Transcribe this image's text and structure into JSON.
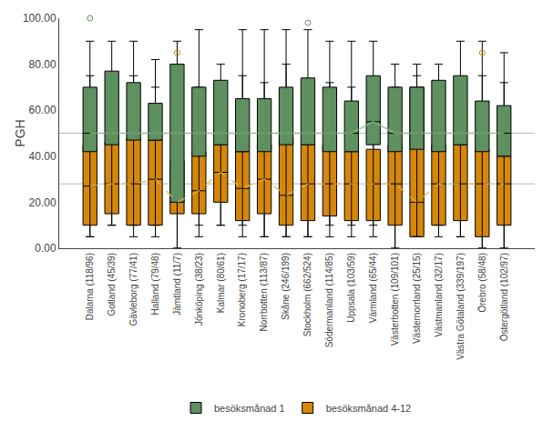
{
  "chart_data": {
    "type": "box",
    "ylabel": "PGH",
    "categories": [
      "Dalarna (118/96)",
      "Gotland (45/39)",
      "Gävleborg (77/41)",
      "Halland (79/48)",
      "Jämtland (11/7)",
      "Jönköping (38/23)",
      "Kalmar (80/61)",
      "Kronoberg (17/17)",
      "Norrbotten (113/87)",
      "Skåne (246/199)",
      "Stockholm (662/524)",
      "Södermanland (114/85)",
      "Uppsala (103/59)",
      "Värmland (65/44)",
      "Västerbotten (109/101)",
      "Västernorrland (25/15)",
      "Västmanland (32/17)",
      "Västra Götaland (339/197)",
      "Örebro (58/48)",
      "Östergötland (102/97)"
    ],
    "series": [
      {
        "type": "box",
        "name": "besöksmånad 1",
        "color": "#5f9060",
        "marker": "circle-open",
        "boxes": [
          {
            "whislo": 5,
            "q1": 42,
            "med": 50,
            "q3": 70,
            "whishi": 90,
            "fliers": [
              100
            ]
          },
          {
            "whislo": 10,
            "q1": 45,
            "med": 50,
            "q3": 77,
            "whishi": 90,
            "fliers": []
          },
          {
            "whislo": 10,
            "q1": 47,
            "med": 50,
            "q3": 72,
            "whishi": 90,
            "fliers": []
          },
          {
            "whislo": 10,
            "q1": 47,
            "med": 50,
            "q3": 63,
            "whishi": 82,
            "fliers": []
          },
          {
            "whislo": 0,
            "q1": 20,
            "med": 50,
            "q3": 80,
            "whishi": 90,
            "fliers": []
          },
          {
            "whislo": 10,
            "q1": 40,
            "med": 50,
            "q3": 70,
            "whishi": 95,
            "fliers": []
          },
          {
            "whislo": 10,
            "q1": 45,
            "med": 50,
            "q3": 73,
            "whishi": 80,
            "fliers": []
          },
          {
            "whislo": 10,
            "q1": 42,
            "med": 50,
            "q3": 65,
            "whishi": 95,
            "fliers": []
          },
          {
            "whislo": 5,
            "q1": 42,
            "med": 50,
            "q3": 65,
            "whishi": 95,
            "fliers": []
          },
          {
            "whislo": 5,
            "q1": 45,
            "med": 50,
            "q3": 70,
            "whishi": 95,
            "fliers": []
          },
          {
            "whislo": 5,
            "q1": 45,
            "med": 50,
            "q3": 74,
            "whishi": 95,
            "fliers": [
              98
            ]
          },
          {
            "whislo": 10,
            "q1": 42,
            "med": 50,
            "q3": 70,
            "whishi": 90,
            "fliers": []
          },
          {
            "whislo": 10,
            "q1": 42,
            "med": 50,
            "q3": 64,
            "whishi": 90,
            "fliers": []
          },
          {
            "whislo": 10,
            "q1": 45,
            "med": 55,
            "q3": 75,
            "whishi": 90,
            "fliers": []
          },
          {
            "whislo": 0,
            "q1": 42,
            "med": 50,
            "q3": 70,
            "whishi": 80,
            "fliers": []
          },
          {
            "whislo": 5,
            "q1": 43,
            "med": 50,
            "q3": 70,
            "whishi": 80,
            "fliers": []
          },
          {
            "whislo": 10,
            "q1": 42,
            "med": 50,
            "q3": 73,
            "whishi": 80,
            "fliers": []
          },
          {
            "whislo": 5,
            "q1": 45,
            "med": 50,
            "q3": 75,
            "whishi": 90,
            "fliers": []
          },
          {
            "whislo": 0,
            "q1": 42,
            "med": 50,
            "q3": 64,
            "whishi": 90,
            "fliers": []
          },
          {
            "whislo": 0,
            "q1": 40,
            "med": 50,
            "q3": 62,
            "whishi": 85,
            "fliers": []
          }
        ]
      },
      {
        "type": "box",
        "name": "besöksmånad 4-12",
        "color": "#d4870a",
        "marker": "circle-open",
        "boxes": [
          {
            "whislo": 5,
            "q1": 10,
            "med": 27,
            "q3": 45,
            "whishi": 75,
            "fliers": []
          },
          {
            "whislo": 10,
            "q1": 15,
            "med": 28,
            "q3": 46,
            "whishi": 75,
            "fliers": []
          },
          {
            "whislo": 5,
            "q1": 10,
            "med": 28,
            "q3": 48,
            "whishi": 75,
            "fliers": []
          },
          {
            "whislo": 5,
            "q1": 10,
            "med": 30,
            "q3": 47,
            "whishi": 70,
            "fliers": []
          },
          {
            "whislo": 0,
            "q1": 15,
            "med": 20,
            "q3": 38,
            "whishi": 70,
            "fliers": [
              85
            ]
          },
          {
            "whislo": 5,
            "q1": 15,
            "med": 25,
            "q3": 42,
            "whishi": 70,
            "fliers": []
          },
          {
            "whislo": 10,
            "q1": 20,
            "med": 33,
            "q3": 45,
            "whishi": 70,
            "fliers": []
          },
          {
            "whislo": 5,
            "q1": 12,
            "med": 26,
            "q3": 42,
            "whishi": 75,
            "fliers": []
          },
          {
            "whislo": 5,
            "q1": 15,
            "med": 30,
            "q3": 45,
            "whishi": 72,
            "fliers": []
          },
          {
            "whislo": 5,
            "q1": 10,
            "med": 23,
            "q3": 48,
            "whishi": 80,
            "fliers": []
          },
          {
            "whislo": 5,
            "q1": 12,
            "med": 28,
            "q3": 45,
            "whishi": 72,
            "fliers": []
          },
          {
            "whislo": 5,
            "q1": 14,
            "med": 28,
            "q3": 45,
            "whishi": 72,
            "fliers": []
          },
          {
            "whislo": 5,
            "q1": 12,
            "med": 28,
            "q3": 42,
            "whishi": 70,
            "fliers": []
          },
          {
            "whislo": 5,
            "q1": 12,
            "med": 28,
            "q3": 43,
            "whishi": 72,
            "fliers": []
          },
          {
            "whislo": 0,
            "q1": 10,
            "med": 28,
            "q3": 45,
            "whishi": 70,
            "fliers": []
          },
          {
            "whislo": 5,
            "q1": 5,
            "med": 20,
            "q3": 70,
            "whishi": 75,
            "fliers": []
          },
          {
            "whislo": 5,
            "q1": 10,
            "med": 28,
            "q3": 45,
            "whishi": 70,
            "fliers": []
          },
          {
            "whislo": 5,
            "q1": 12,
            "med": 28,
            "q3": 45,
            "whishi": 72,
            "fliers": []
          },
          {
            "whislo": 0,
            "q1": 5,
            "med": 28,
            "q3": 43,
            "whishi": 75,
            "fliers": [
              85
            ]
          },
          {
            "whislo": 0,
            "q1": 10,
            "med": 28,
            "q3": 40,
            "whishi": 72,
            "fliers": []
          }
        ]
      },
      {
        "type": "line",
        "color": "#8abf8a",
        "line_style": "solid",
        "values": [
          50,
          50,
          50,
          50,
          50,
          50,
          50,
          50,
          50,
          50,
          50,
          50,
          50,
          55,
          50,
          50,
          50,
          50,
          50,
          50
        ]
      },
      {
        "type": "line",
        "color": "#e8b84b",
        "line_style": "dashed",
        "values": [
          27,
          28,
          28,
          30,
          20,
          25,
          33,
          26,
          30,
          23,
          28,
          28,
          28,
          28,
          28,
          20,
          28,
          28,
          28,
          28
        ]
      }
    ],
    "reference_lines": {
      "values": [
        50,
        28
      ],
      "color": "#bbbbbb"
    },
    "ylim": [
      0,
      100
    ],
    "yticks": [
      {
        "value": 0,
        "label": "0.00"
      },
      {
        "value": 20,
        "label": "20.00"
      },
      {
        "value": 40,
        "label": "40.00"
      },
      {
        "value": 60,
        "label": "60.00"
      },
      {
        "value": 80,
        "label": "80.00"
      },
      {
        "value": 100,
        "label": "100.00"
      }
    ],
    "grid": false,
    "legend": "bottom"
  }
}
